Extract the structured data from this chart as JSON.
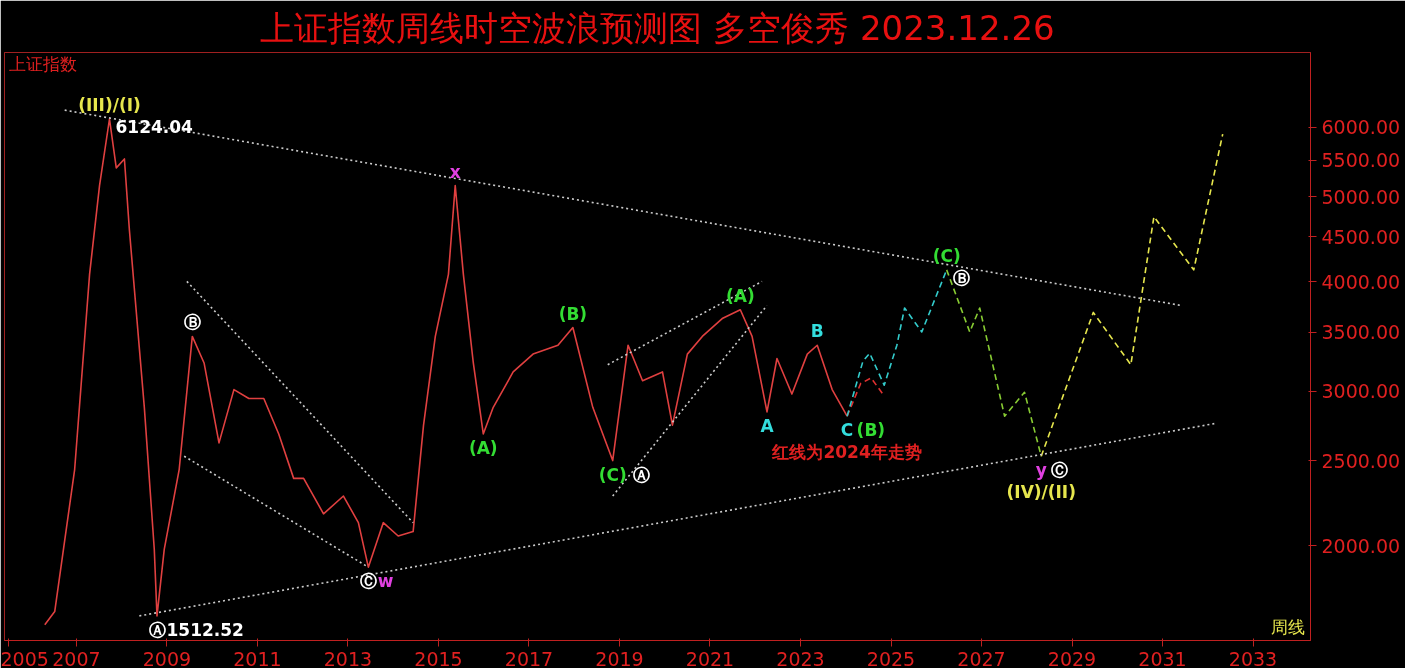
{
  "chart_data": {
    "type": "line",
    "title": "上证指数周线时空波浪预测图 多空俊秀 2023.12.26",
    "log": "y",
    "grid": false,
    "xlim": [
      2005.41,
      2034.27
    ],
    "ylim": [
      1560,
      7296
    ],
    "xticks": [
      {
        "value": 2005.5,
        "label": "2005"
      },
      2007,
      2009,
      2011,
      2013,
      2015,
      2017,
      2019,
      2021,
      2023,
      2025,
      2027,
      2029,
      2031,
      2033
    ],
    "yticks": [
      {
        "value": 2000,
        "label": "2000.00"
      },
      {
        "value": 2500,
        "label": "2500.00"
      },
      {
        "value": 3000,
        "label": "3000.00"
      },
      {
        "value": 3500,
        "label": "3500.00"
      },
      {
        "value": 4000,
        "label": "4000.00"
      },
      {
        "value": 4500,
        "label": "4500.00"
      },
      {
        "value": 5000,
        "label": "5000.00"
      },
      {
        "value": 5500,
        "label": "5500.00"
      },
      {
        "value": 6000,
        "label": "6000.00"
      }
    ],
    "series": [
      {
        "color": "#e04040",
        "line_style": "solid",
        "x": [
          2006.3,
          2006.52,
          2006.96,
          2007.29,
          2007.51,
          2007.73,
          2007.88,
          2008.06,
          2008.17,
          2008.5,
          2008.72,
          2008.78,
          2008.94,
          2009.27,
          2009.56,
          2009.82,
          2010.15,
          2010.48,
          2010.81,
          2011.14,
          2011.47,
          2011.8,
          2012.02,
          2012.46,
          2012.9,
          2013.23,
          2013.45,
          2013.78,
          2014.11,
          2014.44,
          2014.67,
          2014.93,
          2015.22,
          2015.37,
          2015.55,
          2015.77,
          2015.99,
          2016.21,
          2016.65,
          2017.09,
          2017.64,
          2017.97,
          2018.41,
          2018.85,
          2019.19,
          2019.51,
          2019.95,
          2020.17,
          2020.5,
          2020.83,
          2021.27,
          2021.67,
          2021.93,
          2022.26,
          2022.48,
          2022.81,
          2023.15,
          2023.37,
          2023.7,
          2024.03
        ],
        "values": [
          1626,
          1683,
          2443,
          4077,
          5146,
          6128,
          5391,
          5518,
          4580,
          2876,
          1981,
          1664,
          1981,
          2443,
          3464,
          3231,
          2620,
          3013,
          2943,
          2943,
          2682,
          2387,
          2387,
          2175,
          2279,
          2125,
          1891,
          2125,
          2052,
          2076,
          2745,
          3464,
          4077,
          5146,
          4077,
          3231,
          2682,
          2876,
          3156,
          3307,
          3385,
          3546,
          2876,
          2501,
          3385,
          3084,
          3156,
          2745,
          3307,
          3464,
          3630,
          3715,
          3464,
          2842,
          3269,
          2978,
          3307,
          3385,
          3013,
          2810
        ]
      },
      {
        "color": "#e03030",
        "line_style": "dashed",
        "x": [
          2024.03,
          2024.33,
          2024.56,
          2024.85
        ],
        "values": [
          2810,
          3062,
          3106,
          2964
        ]
      },
      {
        "color": "#33cccc",
        "line_style": "dashed",
        "x": [
          2024.03,
          2024.38,
          2024.53,
          2024.85,
          2025.13,
          2025.3,
          2025.68,
          2026.23
        ],
        "values": [
          2810,
          3246,
          3314,
          3048,
          3385,
          3732,
          3505,
          4125
        ]
      },
      {
        "color": "#88cc33",
        "line_style": "dashed",
        "x": [
          2026.23,
          2026.74,
          2026.96,
          2027.51,
          2027.95,
          2028.32
        ],
        "values": [
          4125,
          3505,
          3732,
          2810,
          2992,
          2530
        ]
      },
      {
        "color": "#e6e64d",
        "line_style": "dashed",
        "x": [
          2028.32,
          2029.47,
          2030.3,
          2030.81,
          2031.69,
          2032.33
        ],
        "values": [
          2530,
          3689,
          3216,
          4743,
          4125,
          5890
        ]
      },
      {
        "color": "#cccccc",
        "line_style": "dotted",
        "x": [
          2006.74,
          2031.4
        ],
        "values": [
          6272,
          3758
        ]
      },
      {
        "color": "#cccccc",
        "line_style": "dotted",
        "x": [
          2008.39,
          2032.18
        ],
        "values": [
          1664,
          2758
        ]
      },
      {
        "color": "#cccccc",
        "line_style": "dotted",
        "x": [
          2009.44,
          2014.44
        ],
        "values": [
          4002,
          2125
        ]
      },
      {
        "color": "#cccccc",
        "line_style": "dotted",
        "x": [
          2009.38,
          2013.45
        ],
        "values": [
          2530,
          1891
        ]
      },
      {
        "color": "#cccccc",
        "line_style": "dotted",
        "x": [
          2018.74,
          2022.15
        ],
        "values": [
          3216,
          4002
        ]
      },
      {
        "color": "#cccccc",
        "line_style": "dotted",
        "x": [
          2018.85,
          2022.26
        ],
        "values": [
          2279,
          3758
        ]
      }
    ],
    "annotations": [
      "上证指数",
      "周线",
      {
        "text": "(III)/(I)",
        "x": 2007.73,
        "y": 6128
      },
      {
        "text": "6124.04",
        "x": 2007.73,
        "y": 6128
      },
      {
        "text": "x",
        "x": 2015.37,
        "y": 5146
      },
      {
        "text": "Ⓑ",
        "x": 2009.56,
        "y": 3464
      },
      {
        "text": "Ⓒ",
        "x": 2013.45,
        "y": 1891
      },
      {
        "text": "w",
        "x": 2013.45,
        "y": 1891
      },
      {
        "text": "Ⓐ",
        "x": 2008.78,
        "y": 1664
      },
      {
        "text": "1512.52",
        "x": 2008.78,
        "y": 1664
      },
      {
        "text": "(A)",
        "x": 2015.99,
        "y": 2682
      },
      {
        "text": "(B)",
        "x": 2017.97,
        "y": 3546
      },
      {
        "text": "(C)",
        "x": 2018.85,
        "y": 2501
      },
      {
        "text": "Ⓐ",
        "x": 2018.85,
        "y": 2501
      },
      {
        "text": "(A)",
        "x": 2021.67,
        "y": 3715
      },
      {
        "text": "A",
        "x": 2022.26,
        "y": 2842
      },
      {
        "text": "B",
        "x": 2023.37,
        "y": 3385
      },
      {
        "text": "C",
        "x": 2024.03,
        "y": 2810
      },
      {
        "text": "(B)",
        "x": 2024.03,
        "y": 2810
      },
      {
        "text": "红线为2024年走势",
        "x": 2024.03,
        "y": 2810
      },
      {
        "text": "(C)",
        "x": 2026.23,
        "y": 4125
      },
      {
        "text": "Ⓑ",
        "x": 2026.23,
        "y": 4125
      },
      {
        "text": "y",
        "x": 2028.32,
        "y": 2530
      },
      {
        "text": "Ⓒ",
        "x": 2028.32,
        "y": 2530
      },
      {
        "text": "(IV)/(II)",
        "x": 2028.32,
        "y": 2530
      }
    ]
  }
}
